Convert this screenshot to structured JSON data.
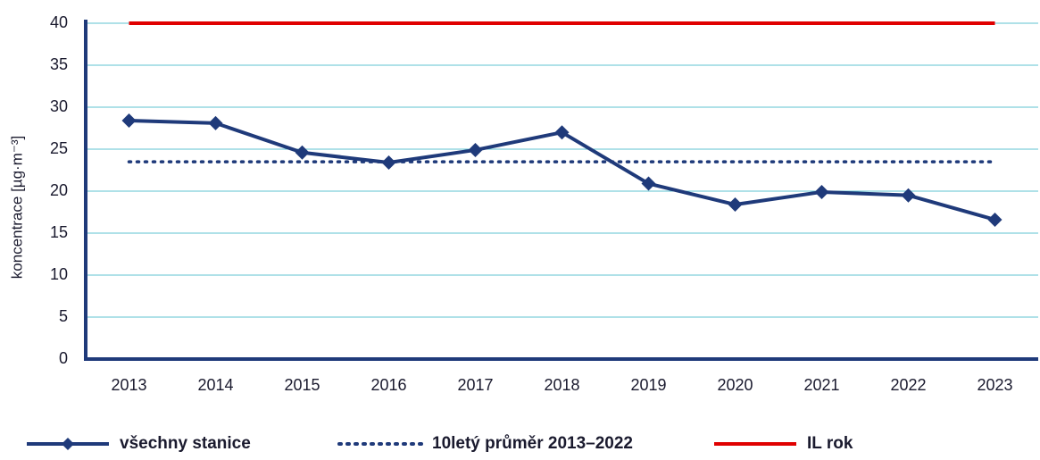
{
  "chart_data": {
    "type": "line",
    "y_label": "koncentrace [µg·m⁻³]",
    "categories": [
      "2013",
      "2014",
      "2015",
      "2016",
      "2017",
      "2018",
      "2019",
      "2020",
      "2021",
      "2022",
      "2023"
    ],
    "series": [
      {
        "name": "všechny stanice",
        "color": "#1f3a7a",
        "style": "solid",
        "marker": "diamond",
        "values": [
          28.4,
          28.1,
          24.6,
          23.4,
          24.9,
          27.0,
          20.9,
          18.4,
          19.9,
          19.5,
          16.6
        ]
      },
      {
        "name": "10letý průměr 2013–2022",
        "color": "#1f3a7a",
        "style": "dotted",
        "marker": "none",
        "values": [
          23.5,
          23.5,
          23.5,
          23.5,
          23.5,
          23.5,
          23.5,
          23.5,
          23.5,
          23.5,
          23.5
        ]
      },
      {
        "name": "IL rok",
        "color": "#e00000",
        "style": "solid",
        "marker": "none",
        "values": [
          40,
          40,
          40,
          40,
          40,
          40,
          40,
          40,
          40,
          40,
          40
        ]
      }
    ],
    "ylim": [
      0,
      40
    ],
    "yticks": [
      0,
      5,
      10,
      15,
      20,
      25,
      30,
      35,
      40
    ],
    "grid": true,
    "legend": "bottom"
  }
}
